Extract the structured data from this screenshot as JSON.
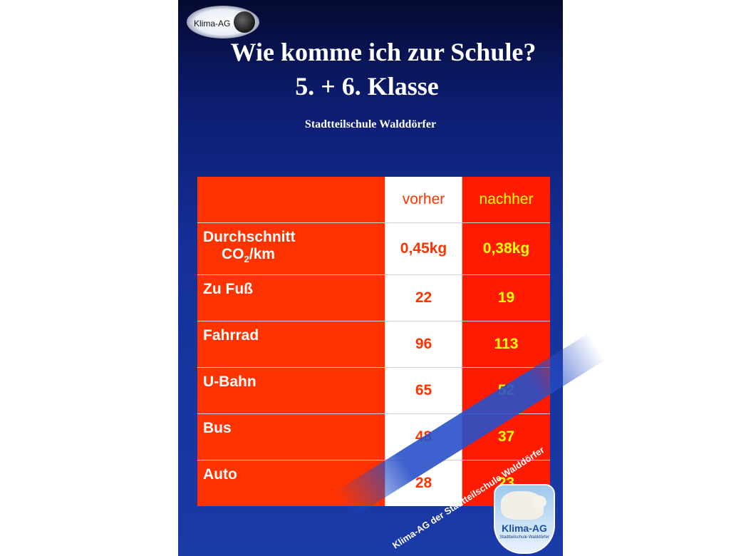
{
  "logo_label": "Klima-AG",
  "title_line1": "Wie komme ich zur Schule?",
  "title_line2": "5. + 6. Klasse",
  "subtitle": "Stadtteilschule Walddörfer",
  "table": {
    "col_vorher": "vorher",
    "col_nachher": "nachher",
    "co2_label_1": "Durchschnitt",
    "co2_label_2": "CO",
    "co2_sub": "2",
    "co2_label_3": "/km",
    "co2_vorher": "0,45kg",
    "co2_nachher": "0,38kg",
    "rows": [
      {
        "label": "Zu Fuß",
        "vorher": "22",
        "nachher": "19"
      },
      {
        "label": "Fahrrad",
        "vorher": "96",
        "nachher": "113"
      },
      {
        "label": "U-Bahn",
        "vorher": "65",
        "nachher": "52"
      },
      {
        "label": "Bus",
        "vorher": "48",
        "nachher": "37"
      },
      {
        "label": "Auto",
        "vorher": "28",
        "nachher": "23"
      }
    ]
  },
  "slogan": "Klima-AG der Stadtteilschule Walddörfer",
  "badge": {
    "name": "Klima-AG",
    "subtitle": "Stadtteilschule Walddörfer"
  },
  "colors": {
    "table_red": "#ff3300",
    "nachher_text": "#ffff00",
    "background_blue": "#1a3aa8"
  }
}
